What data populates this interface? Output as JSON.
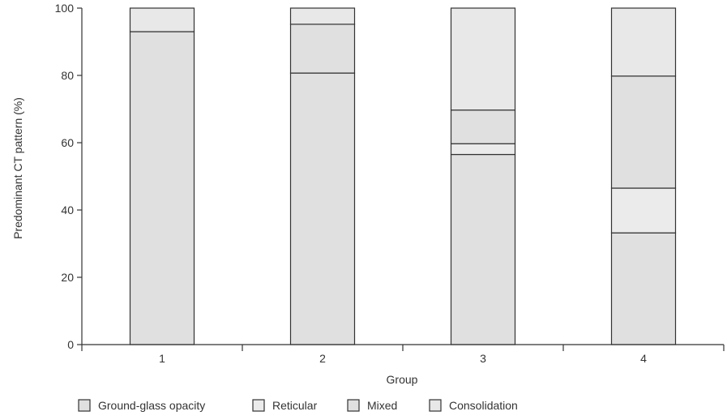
{
  "chart_data": {
    "type": "bar",
    "stacked": true,
    "xlabel": "Group",
    "ylabel": "Predominant CT pattern (%)",
    "ylim": [
      0,
      100
    ],
    "yticks": [
      0,
      20,
      40,
      60,
      80,
      100
    ],
    "categories": [
      "1",
      "2",
      "3",
      "4"
    ],
    "series": [
      {
        "name": "Ground-glass opacity",
        "values": [
          93.0,
          80.7,
          56.5,
          33.2
        ],
        "color": "#e0e0e0"
      },
      {
        "name": "Reticular",
        "values": [
          0.0,
          0.0,
          3.2,
          13.3
        ],
        "color": "#ebebeb"
      },
      {
        "name": "Mixed",
        "values": [
          0.0,
          14.5,
          10.0,
          33.3
        ],
        "color": "#e0e0e0"
      },
      {
        "name": "Consolidation",
        "values": [
          7.0,
          4.8,
          30.3,
          20.2
        ],
        "color": "#e8e8e8"
      }
    ],
    "grid": false,
    "legend_position": "bottom-left"
  }
}
